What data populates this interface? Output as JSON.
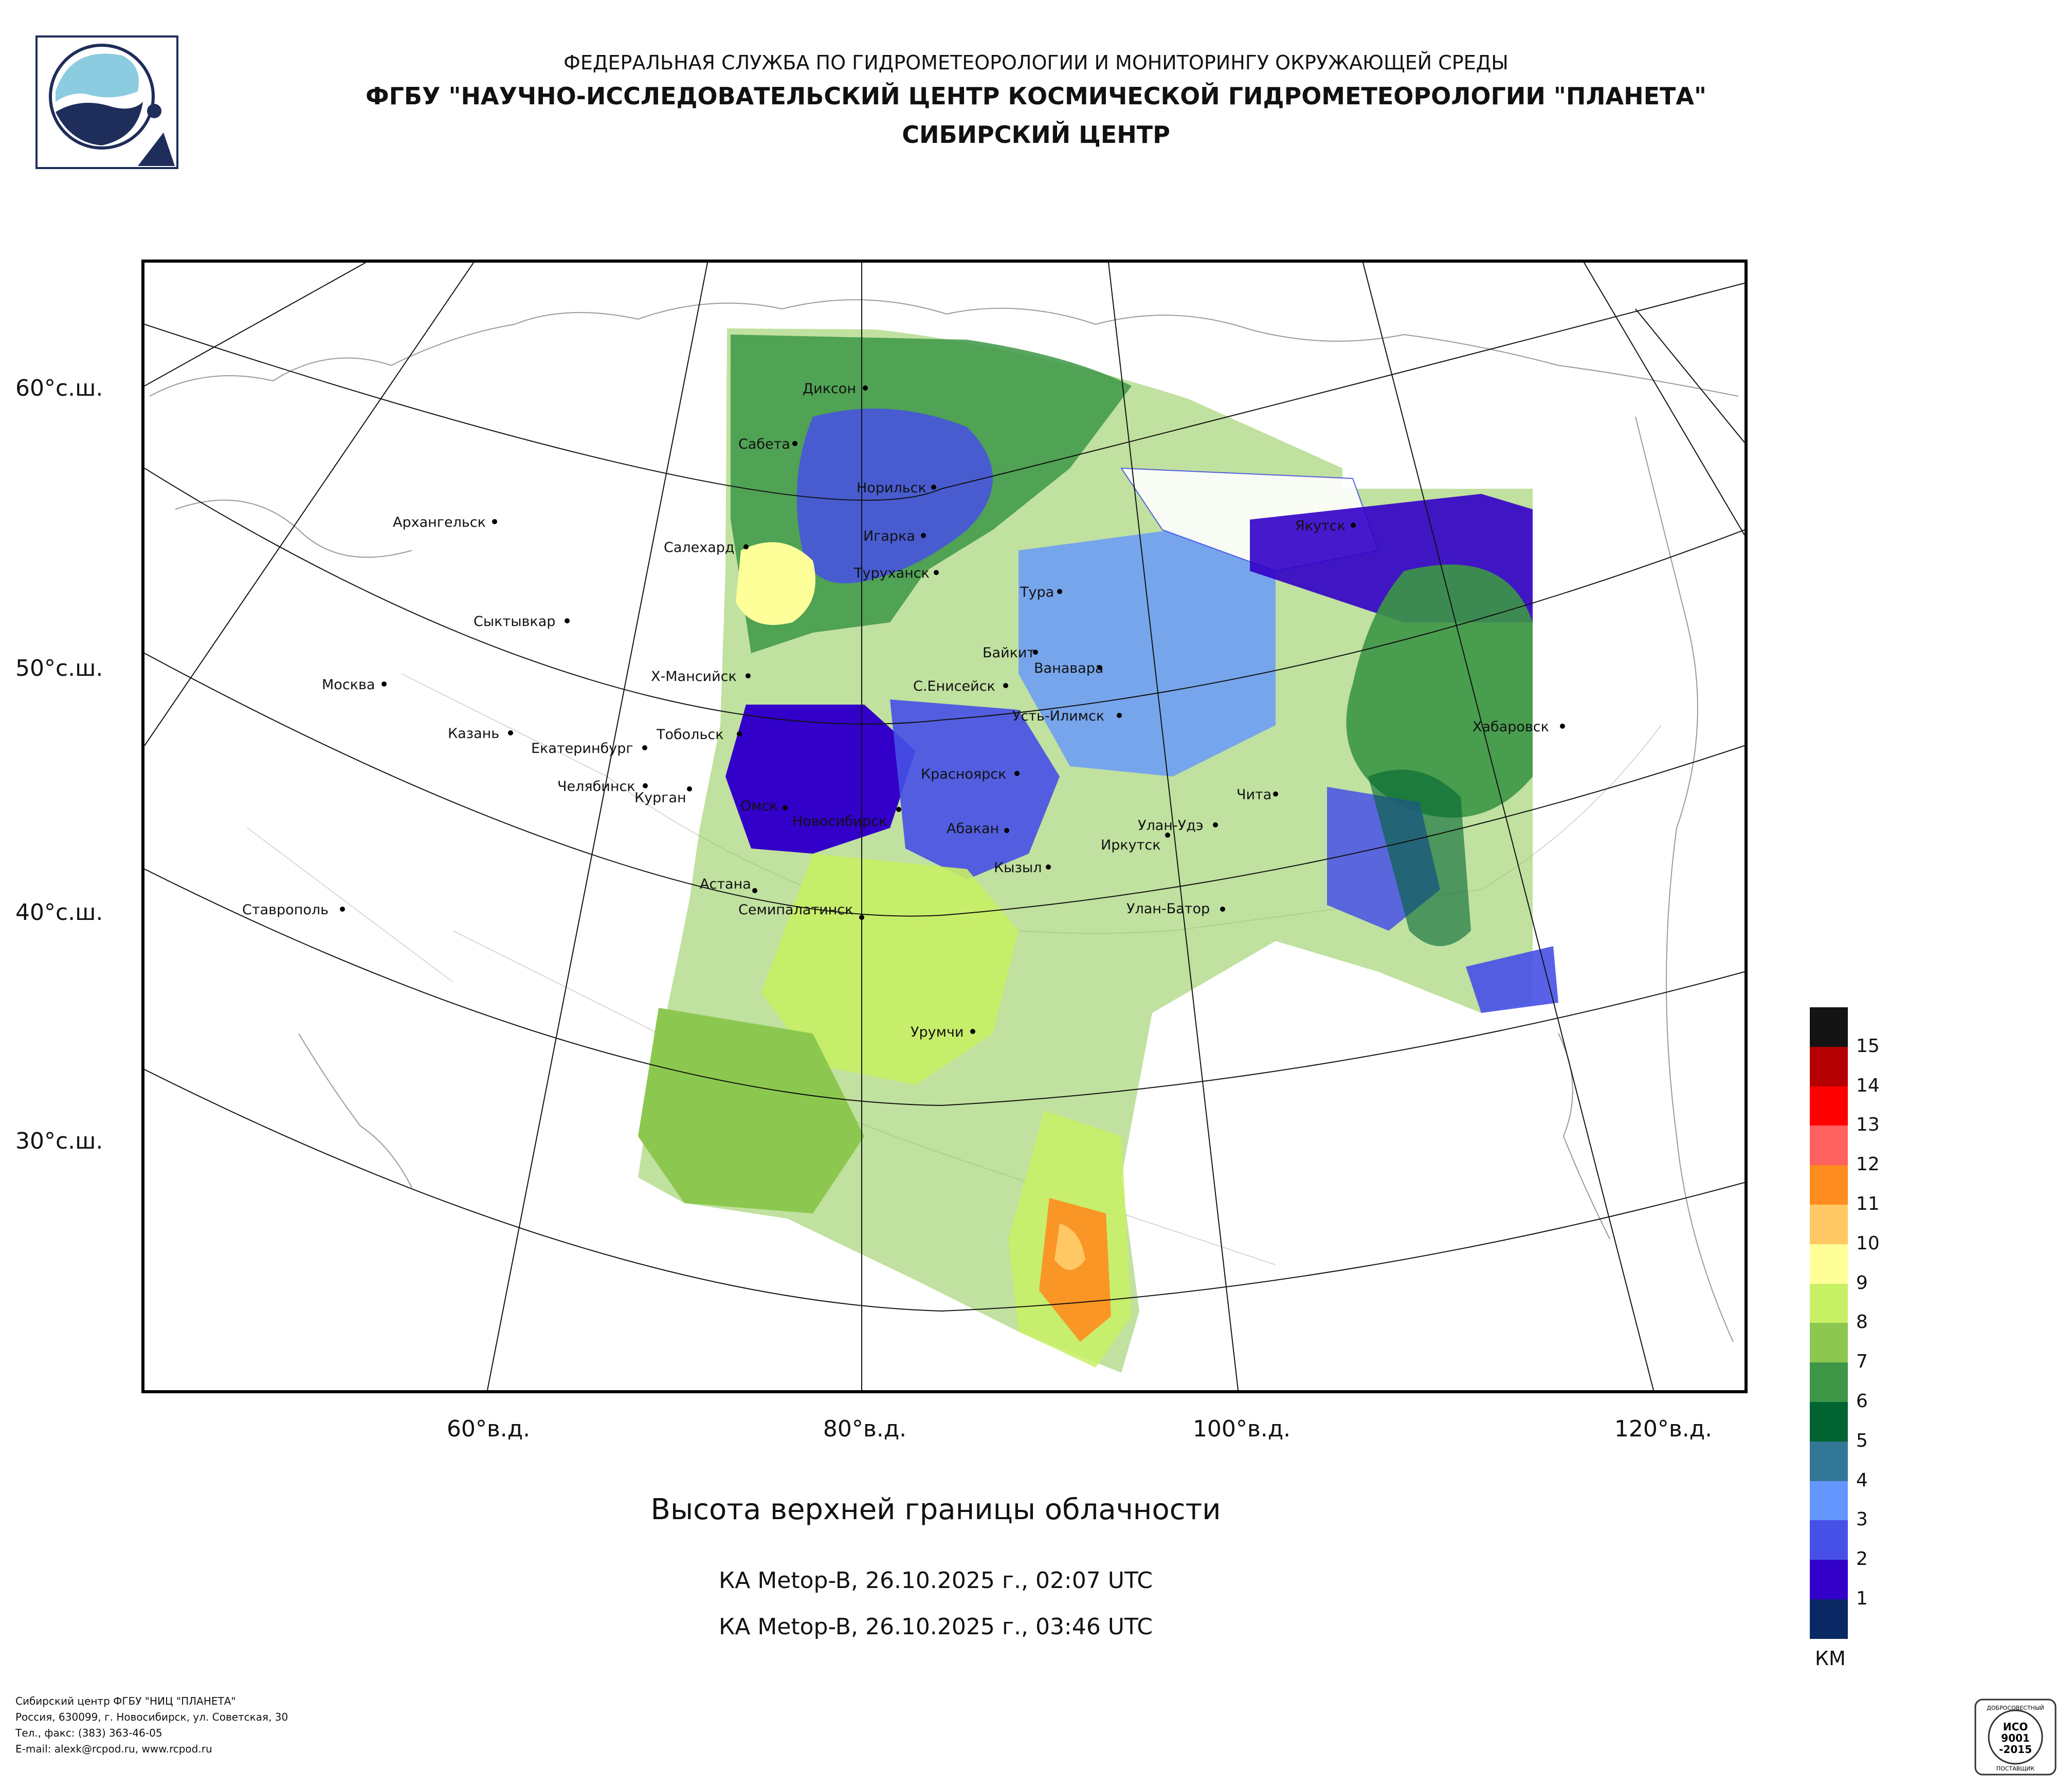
{
  "header": {
    "line1": "ФЕДЕРАЛЬНАЯ СЛУЖБА ПО ГИДРОМЕТЕОРОЛОГИИ И МОНИТОРИНГУ ОКРУЖАЮЩЕЙ СРЕДЫ",
    "line2": "ФГБУ \"НАУЧНО-ИССЛЕДОВАТЕЛЬСКИЙ ЦЕНТР КОСМИЧЕСКОЙ ГИДРОМЕТЕОРОЛОГИИ \"ПЛАНЕТА\"",
    "line3": "СИБИРСКИЙ ЦЕНТР"
  },
  "latitude_labels": [
    "60°с.ш.",
    "50°с.ш.",
    "40°с.ш.",
    "30°с.ш."
  ],
  "longitude_labels": [
    "60°в.д.",
    "80°в.д.",
    "100°в.д.",
    "120°в.д."
  ],
  "title": "Высота верхней границы облачности",
  "passes": [
    "КА Metop-B, 26.10.2025 г., 02:07 UTC",
    "КА Metop-B, 26.10.2025 г., 03:46 UTC"
  ],
  "legend": {
    "unit": "КМ",
    "levels": [
      {
        "label": "15",
        "color": "#141414"
      },
      {
        "label": "14",
        "color": "#b40000"
      },
      {
        "label": "13",
        "color": "#ff0000"
      },
      {
        "label": "12",
        "color": "#ff6060"
      },
      {
        "label": "11",
        "color": "#ff8c1e"
      },
      {
        "label": "10",
        "color": "#ffc864"
      },
      {
        "label": "9",
        "color": "#ffff9a"
      },
      {
        "label": "8",
        "color": "#c8f064"
      },
      {
        "label": "7",
        "color": "#8cc850"
      },
      {
        "label": "6",
        "color": "#3c9646"
      },
      {
        "label": "5",
        "color": "#006432"
      },
      {
        "label": "4",
        "color": "#327896"
      },
      {
        "label": "3",
        "color": "#6496ff"
      },
      {
        "label": "2",
        "color": "#4650e6"
      },
      {
        "label": "1",
        "color": "#3200c8"
      },
      {
        "label": "",
        "color": "#0a2864"
      }
    ]
  },
  "cities": [
    "Диксон",
    "Сабета",
    "Норильск",
    "Игарка",
    "Салехард",
    "Туруханск",
    "Тура",
    "Архангельск",
    "Сыктывкар",
    "Якутск",
    "Байкит",
    "Ванавара",
    "Х-Мансийск",
    "С.Енисейск",
    "Москва",
    "Усть-Илимск",
    "Хабаровск",
    "Казань",
    "Тобольск",
    "Екатеринбург",
    "Красноярск",
    "Челябинск",
    "Чита",
    "Курган",
    "Омск",
    "Новосибирск",
    "Абакан",
    "Улан-Удэ",
    "Иркутск",
    "Кызыл",
    "Астана",
    "Ставрополь",
    "Семипалатинск",
    "Улан-Батор",
    "Урумчи"
  ],
  "footer": {
    "line1": "Сибирский центр ФГБУ \"НИЦ \"ПЛАНЕТА\"",
    "line2": "Россия, 630099, г. Новосибирск, ул. Советская, 30",
    "line3": "Тел., факс: (383) 363-46-05",
    "line4": "E-mail: alexk@rcpod.ru, www.rcpod.ru"
  },
  "iso_badge": {
    "top": "ДОБРОСОВЕСТНЫЙ",
    "line1": "ИСО",
    "line2": "9001",
    "line3": "-2015",
    "bottom": "ПОСТАВЩИК"
  }
}
